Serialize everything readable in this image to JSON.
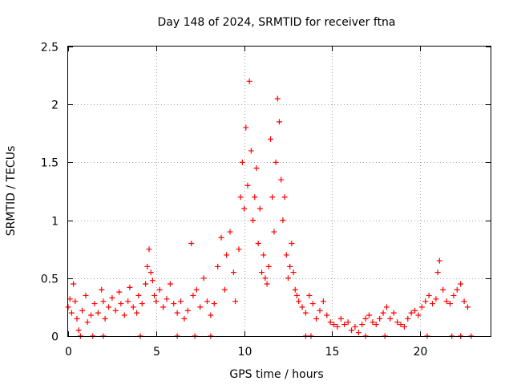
{
  "chart_data": {
    "type": "scatter",
    "title": "Day 148 of 2024, SRMTID for receiver ftna",
    "xlabel": "GPS time / hours",
    "ylabel": "SRMTID / TECUs",
    "xlim": [
      0,
      24
    ],
    "ylim": [
      0,
      2.5
    ],
    "xticks": [
      0,
      5,
      10,
      15,
      20
    ],
    "xtick_labels": [
      "0",
      "5",
      "10",
      "15",
      "20"
    ],
    "yticks": [
      0,
      0.5,
      1,
      1.5,
      2,
      2.5
    ],
    "ytick_labels": [
      "0",
      "0.5",
      "1",
      "1.5",
      "2",
      "2.5"
    ],
    "grid": true,
    "marker": "+",
    "series": [
      {
        "name": "SRMTID",
        "color": "#ff0000",
        "x": [
          0.0,
          0.1,
          0.2,
          0.3,
          0.4,
          0.5,
          0.6,
          0.8,
          1.0,
          1.1,
          1.3,
          1.5,
          1.7,
          1.9,
          2.0,
          2.1,
          2.3,
          2.5,
          2.7,
          2.9,
          3.0,
          3.2,
          3.4,
          3.5,
          3.7,
          3.9,
          4.0,
          4.2,
          4.4,
          4.5,
          4.6,
          4.7,
          4.8,
          4.9,
          5.0,
          5.2,
          5.4,
          5.6,
          5.8,
          6.0,
          6.2,
          6.4,
          6.6,
          6.8,
          7.0,
          7.1,
          7.3,
          7.5,
          7.7,
          7.9,
          8.1,
          8.3,
          8.5,
          8.7,
          8.9,
          9.0,
          9.2,
          9.4,
          9.5,
          9.7,
          9.8,
          9.9,
          10.0,
          10.1,
          10.2,
          10.3,
          10.4,
          10.5,
          10.6,
          10.7,
          10.8,
          10.9,
          11.0,
          11.1,
          11.2,
          11.3,
          11.4,
          11.5,
          11.6,
          11.7,
          11.8,
          11.9,
          12.0,
          12.1,
          12.2,
          12.3,
          12.4,
          12.5,
          12.6,
          12.7,
          12.8,
          12.9,
          13.0,
          13.1,
          13.3,
          13.5,
          13.7,
          13.9,
          14.1,
          14.3,
          14.5,
          14.7,
          14.9,
          15.1,
          15.3,
          15.5,
          15.7,
          15.9,
          16.1,
          16.3,
          16.5,
          16.7,
          16.9,
          17.1,
          17.3,
          17.5,
          17.7,
          17.9,
          18.1,
          18.3,
          18.5,
          18.7,
          18.9,
          19.1,
          19.3,
          19.5,
          19.7,
          19.9,
          20.1,
          20.3,
          20.5,
          20.7,
          20.9,
          21.0,
          21.1,
          21.3,
          21.5,
          21.7,
          21.9,
          22.1,
          22.3,
          22.5,
          22.7,
          0.7,
          1.4,
          2.0,
          4.1,
          6.2,
          7.2,
          8.1,
          13.5,
          13.8,
          16.9,
          18.0,
          20.4,
          21.8,
          22.3,
          22.9
        ],
        "y": [
          0.25,
          0.32,
          0.2,
          0.45,
          0.3,
          0.15,
          0.05,
          0.22,
          0.35,
          0.12,
          0.18,
          0.28,
          0.2,
          0.4,
          0.3,
          0.15,
          0.25,
          0.33,
          0.22,
          0.38,
          0.28,
          0.18,
          0.3,
          0.42,
          0.25,
          0.2,
          0.35,
          0.28,
          0.45,
          0.6,
          0.75,
          0.55,
          0.48,
          0.35,
          0.3,
          0.4,
          0.25,
          0.32,
          0.45,
          0.28,
          0.2,
          0.3,
          0.15,
          0.22,
          0.8,
          0.35,
          0.4,
          0.25,
          0.5,
          0.3,
          0.18,
          0.28,
          0.6,
          0.85,
          0.4,
          0.7,
          0.9,
          0.55,
          0.3,
          0.75,
          1.2,
          1.5,
          1.1,
          1.8,
          1.3,
          2.2,
          1.6,
          1.0,
          1.2,
          1.45,
          0.8,
          1.1,
          0.55,
          0.7,
          0.5,
          0.45,
          0.6,
          1.7,
          1.2,
          0.9,
          1.5,
          2.05,
          1.85,
          1.35,
          1.0,
          1.2,
          0.7,
          0.5,
          0.6,
          0.8,
          0.55,
          0.4,
          0.35,
          0.3,
          0.25,
          0.2,
          0.35,
          0.28,
          0.15,
          0.22,
          0.3,
          0.18,
          0.12,
          0.1,
          0.08,
          0.15,
          0.1,
          0.12,
          0.05,
          0.08,
          0.03,
          0.1,
          0.15,
          0.18,
          0.12,
          0.1,
          0.15,
          0.2,
          0.25,
          0.15,
          0.2,
          0.12,
          0.1,
          0.08,
          0.15,
          0.2,
          0.22,
          0.18,
          0.25,
          0.3,
          0.35,
          0.28,
          0.32,
          0.55,
          0.65,
          0.4,
          0.3,
          0.28,
          0.35,
          0.4,
          0.45,
          0.3,
          0.25,
          0.0,
          0.0,
          0.0,
          0.0,
          0.0,
          0.0,
          0.0,
          0.0,
          0.0,
          0.0,
          0.0,
          0.0,
          0.0,
          0.0,
          0.0
        ]
      }
    ]
  }
}
